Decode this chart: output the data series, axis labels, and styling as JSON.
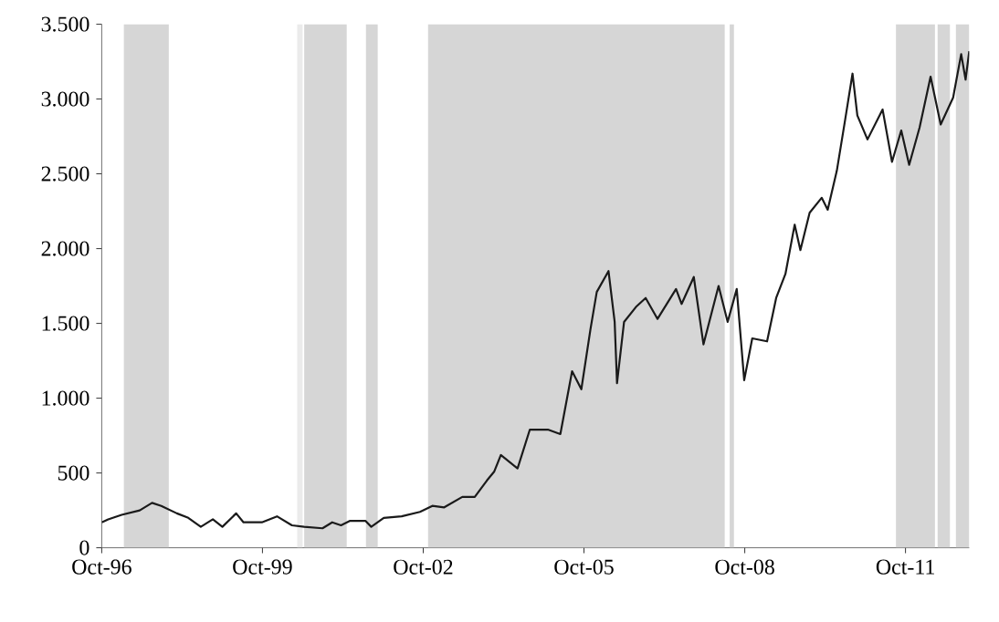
{
  "chart_data": {
    "type": "line",
    "x": [
      "1996-10-01",
      "1996-11-14",
      "1997-02-14",
      "1997-06-17",
      "1997-09-09",
      "1997-11-11",
      "1998-02-25",
      "1998-05-14",
      "1998-08-07",
      "1998-10-28",
      "1999-01-01",
      "1999-04-05",
      "1999-05-25",
      "1999-09-27",
      "2000-01-08",
      "2000-04-19",
      "2000-07-12",
      "2000-11-14",
      "2001-01-19",
      "2001-03-20",
      "2001-05-21",
      "2001-09-02",
      "2001-10-12",
      "2002-01-05",
      "2002-05-07",
      "2002-09-09",
      "2002-12-02",
      "2003-02-21",
      "2003-06-24",
      "2003-09-17",
      "2003-12-09",
      "2004-01-28",
      "2004-03-13",
      "2004-07-05",
      "2004-09-27",
      "2005-01-28",
      "2005-04-23",
      "2005-07-12",
      "2005-09-13",
      "2005-11-14",
      "2005-12-27",
      "2006-03-17",
      "2006-04-28",
      "2006-05-14",
      "2006-07-01",
      "2006-09-20",
      "2006-11-25",
      "2007-02-14",
      "2007-06-20",
      "2007-07-28",
      "2007-10-19",
      "2007-12-24",
      "2008-04-05",
      "2008-06-06",
      "2008-08-07",
      "2008-09-27",
      "2008-11-21",
      "2009-03-02",
      "2009-05-03",
      "2009-07-05",
      "2009-09-06",
      "2009-10-15",
      "2009-12-17",
      "2010-03-09",
      "2010-04-19",
      "2010-06-20",
      "2010-08-14",
      "2010-10-05",
      "2010-11-07",
      "2011-01-15",
      "2011-04-28",
      "2011-07-01",
      "2011-09-02",
      "2011-10-26",
      "2012-01-05",
      "2012-03-20",
      "2012-05-28",
      "2012-08-21",
      "2012-10-15",
      "2012-11-14",
      "2012-12-09"
    ],
    "series": [
      {
        "color": "#1a1a1a",
        "values": [
          170,
          190,
          220,
          250,
          300,
          280,
          230,
          200,
          140,
          190,
          140,
          230,
          170,
          170,
          210,
          150,
          140,
          130,
          170,
          150,
          180,
          180,
          140,
          200,
          210,
          240,
          280,
          270,
          340,
          340,
          450,
          510,
          620,
          530,
          790,
          790,
          760,
          1180,
          1060,
          1460,
          1710,
          1850,
          1510,
          1100,
          1510,
          1610,
          1670,
          1530,
          1730,
          1630,
          1810,
          1360,
          1750,
          1510,
          1730,
          1120,
          1400,
          1380,
          1670,
          1830,
          2160,
          1990,
          2240,
          2340,
          2260,
          2520,
          2850,
          3170,
          2890,
          2730,
          2930,
          2580,
          2790,
          2560,
          2810,
          3150,
          2830,
          3010,
          3300,
          3130,
          3320
        ]
      }
    ],
    "xlim": [
      "1996-10-01",
      "2012-12-09"
    ],
    "xticks": [
      {
        "value": "1996-10-01",
        "label": "Oct-96"
      },
      {
        "value": "1999-10-01",
        "label": "Oct-99"
      },
      {
        "value": "2002-10-01",
        "label": "Oct-02"
      },
      {
        "value": "2005-10-01",
        "label": "Oct-05"
      },
      {
        "value": "2008-10-01",
        "label": "Oct-08"
      },
      {
        "value": "2011-10-01",
        "label": "Oct-11"
      }
    ],
    "ylim": [
      0,
      3500
    ],
    "yticks": [
      0,
      500,
      {
        "value": 1000,
        "label": "1.000"
      },
      {
        "value": 1500,
        "label": "1.500"
      },
      {
        "value": 2000,
        "label": "2.000"
      },
      {
        "value": 2500,
        "label": "2.500"
      },
      {
        "value": 3000,
        "label": "3.000"
      },
      {
        "value": 3500,
        "label": "3.500"
      }
    ],
    "bands": [
      {
        "axis": "x",
        "from": "1997-03-01",
        "to": "1998-01-01",
        "color": "#d6d6d6"
      },
      {
        "axis": "x",
        "from": "2000-05-25",
        "to": "2000-07-01",
        "color": "#ebebeb"
      },
      {
        "axis": "x",
        "from": "2000-07-12",
        "to": "2001-04-28",
        "color": "#d6d6d6"
      },
      {
        "axis": "x",
        "from": "2001-09-06",
        "to": "2001-11-25",
        "color": "#d6d6d6"
      },
      {
        "axis": "x",
        "from": "2002-11-03",
        "to": "2008-05-17",
        "color": "#d6d6d6"
      },
      {
        "axis": "x",
        "from": "2008-06-20",
        "to": "2008-07-19",
        "color": "#d6d6d6"
      },
      {
        "axis": "x",
        "from": "2011-07-28",
        "to": "2012-04-19",
        "color": "#d6d6d6"
      },
      {
        "axis": "x",
        "from": "2012-05-07",
        "to": "2012-07-30",
        "color": "#d6d6d6"
      },
      {
        "axis": "x",
        "from": "2012-09-09",
        "to": "2012-12-09",
        "color": "#d6d6d6"
      }
    ],
    "marker": "none",
    "line_style": "solid"
  }
}
